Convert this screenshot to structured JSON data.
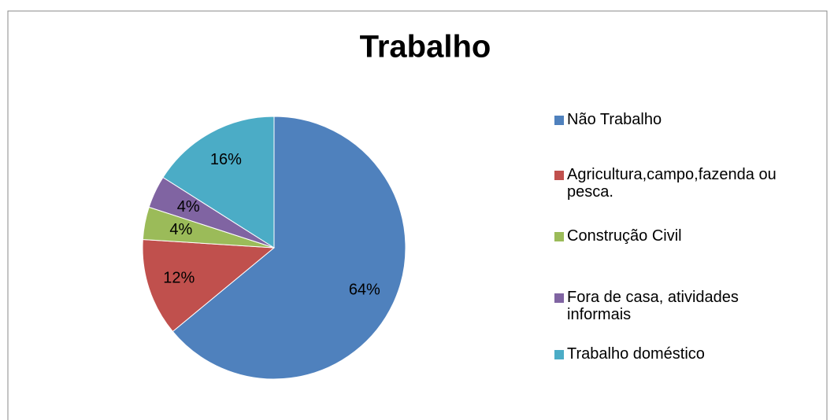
{
  "chart_data": {
    "type": "pie",
    "title": "Trabalho",
    "categories": [
      "Não Trabalho",
      "Agricultura,campo,fazenda ou pesca.",
      "Construção Civil",
      "Fora de casa, atividades informais",
      "Trabalho doméstico"
    ],
    "values": [
      64,
      12,
      4,
      4,
      16
    ],
    "value_labels": [
      "64%",
      "12%",
      "4%",
      "4%",
      "16%"
    ],
    "colors": [
      "#4f81bd",
      "#c0504d",
      "#9bbb59",
      "#8064a2",
      "#4bacc6"
    ],
    "legend": "right"
  }
}
